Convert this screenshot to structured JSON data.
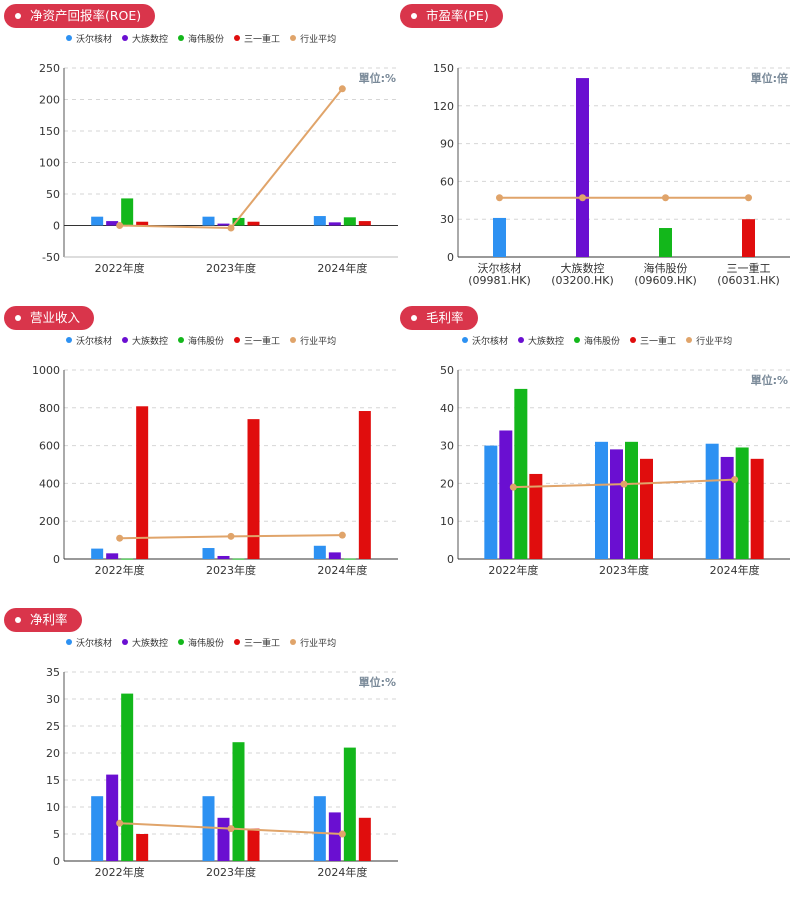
{
  "colors": {
    "accent": "#d9354b",
    "series": [
      "#2d91f2",
      "#6a0fd1",
      "#13b71b",
      "#e00d0d"
    ],
    "average": "#e0a46a"
  },
  "legend": [
    "沃尔核材",
    "大族数控",
    "海伟股份",
    "三一重工",
    "行业平均"
  ],
  "chart_data": [
    {
      "id": "roe",
      "title": "净资产回报率(ROE)",
      "type": "bar",
      "unit_label": "單位:%",
      "categories": [
        "2022年度",
        "2023年度",
        "2024年度"
      ],
      "ylim": [
        -50,
        250
      ],
      "yticks": [
        -50,
        0,
        50,
        100,
        150,
        200,
        250
      ],
      "grid": true,
      "legend_position": "top",
      "series": [
        {
          "name": "沃尔核材",
          "values": [
            14,
            14,
            15
          ]
        },
        {
          "name": "大族数控",
          "values": [
            7,
            3,
            5
          ]
        },
        {
          "name": "海伟股份",
          "values": [
            43,
            12,
            13
          ]
        },
        {
          "name": "三一重工",
          "values": [
            6,
            6,
            7
          ]
        }
      ],
      "average": {
        "name": "行业平均",
        "values": [
          0,
          -4,
          217
        ]
      }
    },
    {
      "id": "pe",
      "title": "市盈率(PE)",
      "type": "bar",
      "unit_label": "單位:倍",
      "categories": [
        "沃尔核材",
        "大族数控",
        "海伟股份",
        "三一重工"
      ],
      "category_codes": [
        "(09981.HK)",
        "(03200.HK)",
        "(09609.HK)",
        "(06031.HK)"
      ],
      "ylim": [
        0,
        150
      ],
      "yticks": [
        0,
        30,
        60,
        90,
        120,
        150
      ],
      "grid": true,
      "values": [
        31,
        142,
        23,
        30
      ],
      "average": {
        "name": "行业平均",
        "values": [
          47,
          47,
          47,
          47
        ]
      }
    },
    {
      "id": "revenue",
      "title": "营业收入",
      "type": "bar",
      "unit_label": "",
      "categories": [
        "2022年度",
        "2023年度",
        "2024年度"
      ],
      "ylim": [
        0,
        1000
      ],
      "yticks": [
        0,
        200,
        400,
        600,
        800,
        1000
      ],
      "grid": true,
      "legend_position": "top",
      "series": [
        {
          "name": "沃尔核材",
          "values": [
            55,
            58,
            70
          ]
        },
        {
          "name": "大族数控",
          "values": [
            30,
            16,
            35
          ]
        },
        {
          "name": "海伟股份",
          "values": [
            2,
            2,
            2
          ]
        },
        {
          "name": "三一重工",
          "values": [
            808,
            740,
            783
          ]
        }
      ],
      "average": {
        "name": "行业平均",
        "values": [
          110,
          120,
          126
        ]
      }
    },
    {
      "id": "gross_margin",
      "title": "毛利率",
      "type": "bar",
      "unit_label": "單位:%",
      "categories": [
        "2022年度",
        "2023年度",
        "2024年度"
      ],
      "ylim": [
        0,
        50
      ],
      "yticks": [
        0,
        10,
        20,
        30,
        40,
        50
      ],
      "grid": true,
      "legend_position": "top",
      "series": [
        {
          "name": "沃尔核材",
          "values": [
            30,
            31,
            30.5
          ]
        },
        {
          "name": "大族数控",
          "values": [
            34,
            29,
            27
          ]
        },
        {
          "name": "海伟股份",
          "values": [
            45,
            31,
            29.5
          ]
        },
        {
          "name": "三一重工",
          "values": [
            22.5,
            26.5,
            26.5
          ]
        }
      ],
      "average": {
        "name": "行业平均",
        "values": [
          19,
          19.8,
          21
        ]
      }
    },
    {
      "id": "net_margin",
      "title": "净利率",
      "type": "bar",
      "unit_label": "單位:%",
      "categories": [
        "2022年度",
        "2023年度",
        "2024年度"
      ],
      "ylim": [
        0,
        35
      ],
      "yticks": [
        0,
        5,
        10,
        15,
        20,
        25,
        30,
        35
      ],
      "grid": true,
      "legend_position": "top",
      "series": [
        {
          "name": "沃尔核材",
          "values": [
            12,
            12,
            12
          ]
        },
        {
          "name": "大族数控",
          "values": [
            16,
            8,
            9
          ]
        },
        {
          "name": "海伟股份",
          "values": [
            31,
            22,
            21
          ]
        },
        {
          "name": "三一重工",
          "values": [
            5,
            6,
            8
          ]
        }
      ],
      "average": {
        "name": "行业平均",
        "values": [
          7,
          6,
          5
        ]
      }
    }
  ]
}
